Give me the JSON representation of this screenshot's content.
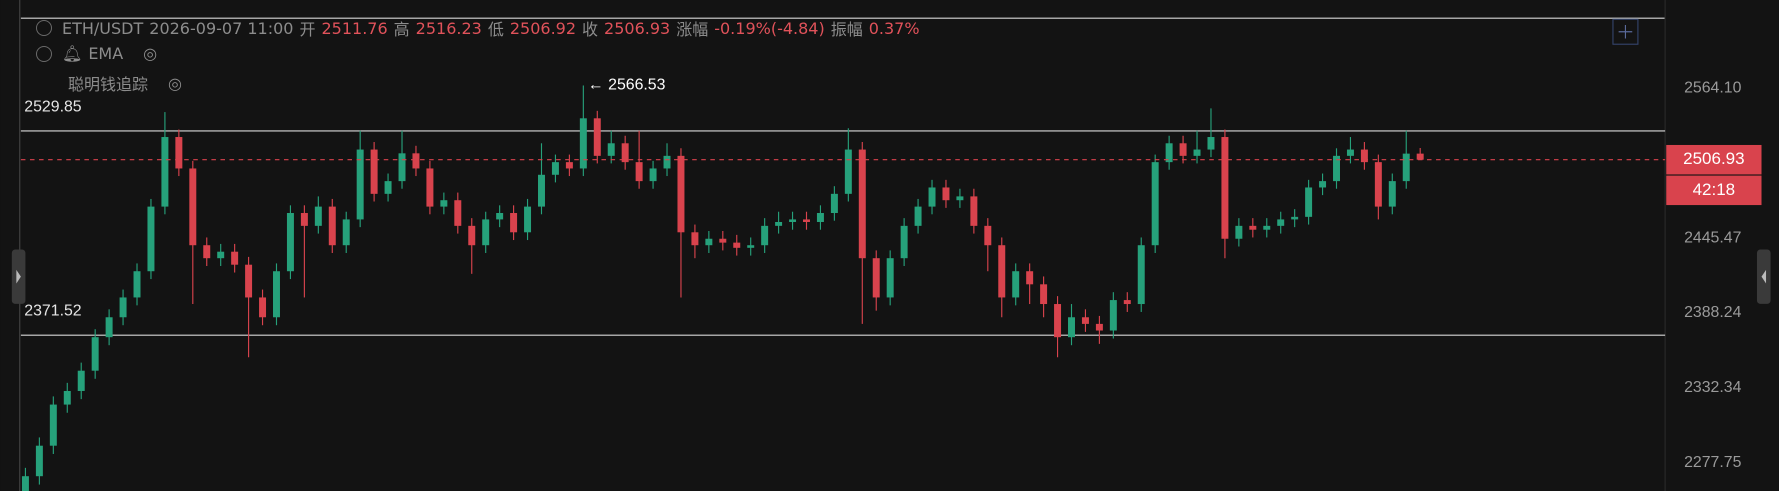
{
  "header": {
    "symbol": "ETH/USDT",
    "time": "2026-09-07 11:00",
    "open_label": "开",
    "high_label": "高",
    "low_label": "低",
    "close_label": "收",
    "change_label": "涨幅",
    "change": "-0.19%(-4.84)",
    "amplitude_label": "振幅",
    "amplitude": "0.37%",
    "indicators": [
      "EMA",
      "聪明钱追踪"
    ]
  },
  "chart_data": {
    "type": "candlestick",
    "log_scale": true,
    "grid": false,
    "up_color": "#26a17b",
    "down_color": "#d9434d",
    "ylim": [
      2257.4,
      2621.8
    ],
    "yticks": [
      {
        "value": 2564.1,
        "label": "2564.10"
      },
      2445.47,
      2388.24,
      2332.34,
      2277.75
    ],
    "levels": [
      2529.85,
      2371.52
    ],
    "countdown": "42:18",
    "open": [
      2255,
      2268,
      2290,
      2320,
      2330,
      2345,
      2370,
      2385,
      2400,
      2420,
      2470,
      2525,
      2500,
      2440,
      2430,
      2435,
      2425,
      2400,
      2385,
      2420,
      2465,
      2455,
      2470,
      2440,
      2460,
      2515,
      2480,
      2490,
      2512,
      2500,
      2470,
      2475,
      2455,
      2440,
      2460,
      2465,
      2450,
      2470,
      2495,
      2505,
      2500,
      2540,
      2510,
      2520,
      2505,
      2490,
      2500,
      2510,
      2450,
      2440,
      2445,
      2442,
      2438,
      2440,
      2455,
      2458,
      2460,
      2458,
      2465,
      2480,
      2515,
      2430,
      2400,
      2430,
      2455,
      2470,
      2485,
      2475,
      2478,
      2455,
      2440,
      2400,
      2420,
      2410,
      2395,
      2370,
      2385,
      2380,
      2375,
      2398,
      2395,
      2440,
      2505,
      2520,
      2510,
      2515,
      2525,
      2445,
      2455,
      2452,
      2455,
      2460,
      2462,
      2485,
      2490,
      2510,
      2515,
      2505,
      2470,
      2490,
      2511.76
    ],
    "high": [
      2274,
      2296,
      2326,
      2336,
      2351,
      2376,
      2391,
      2406,
      2426,
      2476,
      2545,
      2531,
      2506,
      2446,
      2441,
      2441,
      2431,
      2406,
      2426,
      2471,
      2471,
      2478,
      2476,
      2466,
      2530,
      2521,
      2496,
      2530,
      2518,
      2506,
      2481,
      2481,
      2461,
      2466,
      2471,
      2471,
      2476,
      2520,
      2511,
      2511,
      2566.53,
      2546,
      2530,
      2526,
      2530,
      2506,
      2520,
      2516,
      2456,
      2451,
      2451,
      2448,
      2446,
      2461,
      2466,
      2466,
      2466,
      2471,
      2486,
      2532,
      2521,
      2436,
      2436,
      2461,
      2476,
      2491,
      2491,
      2484,
      2484,
      2461,
      2446,
      2426,
      2426,
      2416,
      2401,
      2395,
      2391,
      2386,
      2404,
      2404,
      2446,
      2511,
      2526,
      2526,
      2530,
      2548,
      2531,
      2461,
      2461,
      2461,
      2466,
      2468,
      2491,
      2496,
      2516,
      2525,
      2521,
      2511,
      2496,
      2530,
      2516.23
    ],
    "low": [
      2249,
      2262,
      2284,
      2314,
      2324,
      2339,
      2364,
      2379,
      2394,
      2414,
      2464,
      2494,
      2395,
      2424,
      2424,
      2419,
      2355,
      2379,
      2379,
      2414,
      2400,
      2449,
      2434,
      2434,
      2454,
      2474,
      2474,
      2484,
      2494,
      2464,
      2464,
      2449,
      2418,
      2434,
      2454,
      2444,
      2444,
      2464,
      2489,
      2494,
      2494,
      2504,
      2504,
      2499,
      2484,
      2484,
      2494,
      2400,
      2430,
      2434,
      2436,
      2432,
      2432,
      2434,
      2449,
      2452,
      2452,
      2452,
      2459,
      2474,
      2380,
      2390,
      2394,
      2424,
      2449,
      2464,
      2469,
      2469,
      2449,
      2420,
      2385,
      2394,
      2395,
      2385,
      2355,
      2364,
      2374,
      2365,
      2369,
      2389,
      2389,
      2434,
      2499,
      2504,
      2504,
      2509,
      2430,
      2439,
      2446,
      2446,
      2449,
      2454,
      2456,
      2479,
      2484,
      2504,
      2499,
      2460,
      2464,
      2484,
      2506.92
    ],
    "close": [
      2268,
      2290,
      2320,
      2330,
      2345,
      2370,
      2385,
      2400,
      2420,
      2470,
      2525,
      2500,
      2440,
      2430,
      2435,
      2425,
      2400,
      2385,
      2420,
      2465,
      2455,
      2470,
      2440,
      2460,
      2515,
      2480,
      2490,
      2512,
      2500,
      2470,
      2475,
      2455,
      2440,
      2460,
      2465,
      2450,
      2470,
      2495,
      2505,
      2500,
      2540,
      2510,
      2520,
      2505,
      2490,
      2500,
      2510,
      2450,
      2440,
      2445,
      2442,
      2438,
      2440,
      2455,
      2458,
      2460,
      2458,
      2465,
      2480,
      2515,
      2430,
      2400,
      2430,
      2455,
      2470,
      2485,
      2475,
      2478,
      2455,
      2440,
      2400,
      2420,
      2410,
      2395,
      2370,
      2385,
      2380,
      2375,
      2398,
      2395,
      2440,
      2505,
      2520,
      2510,
      2515,
      2525,
      2445,
      2455,
      2452,
      2455,
      2460,
      2462,
      2485,
      2490,
      2510,
      2515,
      2505,
      2470,
      2490,
      2511.76,
      2506.93
    ]
  }
}
